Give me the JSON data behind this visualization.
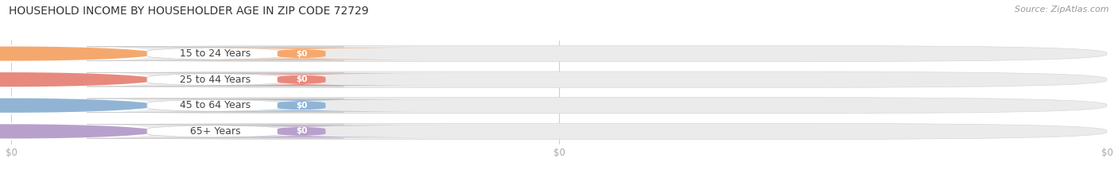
{
  "title": "HOUSEHOLD INCOME BY HOUSEHOLDER AGE IN ZIP CODE 72729",
  "source": "Source: ZipAtlas.com",
  "categories": [
    "15 to 24 Years",
    "25 to 44 Years",
    "45 to 64 Years",
    "65+ Years"
  ],
  "values": [
    0,
    0,
    0,
    0
  ],
  "bar_colors": [
    "#f5a86e",
    "#e8897e",
    "#91b4d5",
    "#b8a0cc"
  ],
  "background_color": "#ffffff",
  "bar_bg_color": "#ebebeb",
  "title_fontsize": 10,
  "source_fontsize": 8,
  "label_fontsize": 9,
  "tick_fontsize": 8.5,
  "bar_height": 0.62,
  "xlim_max": 1.0
}
